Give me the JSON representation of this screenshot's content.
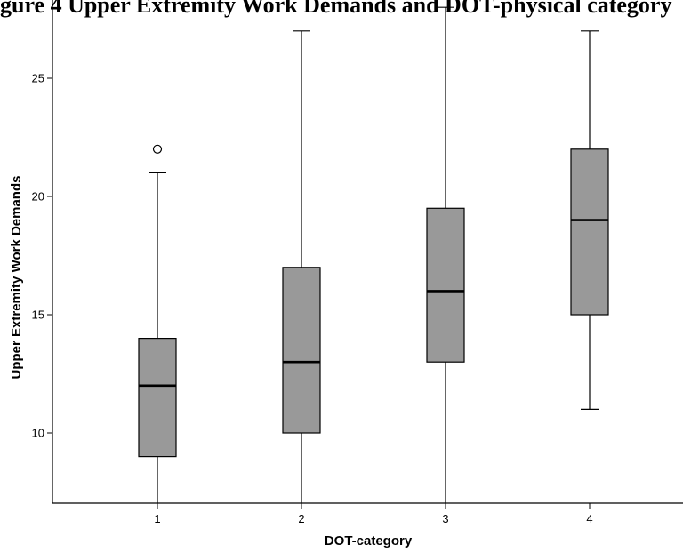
{
  "chart_data": {
    "type": "boxplot",
    "title": "gure 4 Upper Extremity Work Demands and DOT-physical category",
    "xlabel": "DOT-category",
    "ylabel": "Upper Extremity Work Demands",
    "categories": [
      "1",
      "2",
      "3",
      "4"
    ],
    "yticks": [
      10,
      15,
      20,
      25
    ],
    "ylim": [
      7,
      28
    ],
    "grid": false,
    "box_color": "#999999",
    "boxes": [
      {
        "category": "1",
        "whisker_low": 7,
        "q1": 9,
        "median": 12,
        "q3": 14,
        "whisker_high": 21,
        "outliers": [
          22
        ]
      },
      {
        "category": "2",
        "whisker_low": 7,
        "q1": 10,
        "median": 13,
        "q3": 17,
        "whisker_high": 27,
        "outliers": []
      },
      {
        "category": "3",
        "whisker_low": 7,
        "q1": 13,
        "median": 16,
        "q3": 19.5,
        "whisker_high": 28,
        "outliers": []
      },
      {
        "category": "4",
        "whisker_low": 11,
        "q1": 15,
        "median": 19,
        "q3": 22,
        "whisker_high": 27,
        "outliers": []
      }
    ]
  }
}
